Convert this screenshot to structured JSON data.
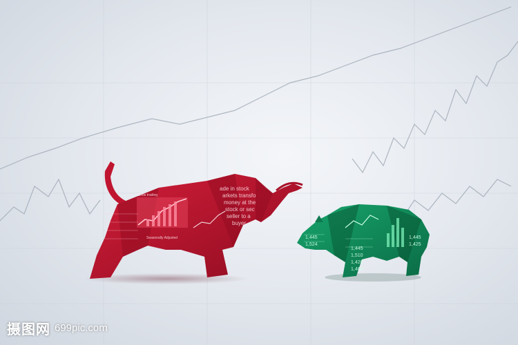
{
  "scene": {
    "subjects": [
      "bull",
      "bear"
    ],
    "bull_color": "#b3102a",
    "bear_color": "#0e8a5a",
    "bg_line_color": "#9aa4b0"
  },
  "bull_texts": [
    "ade in stock",
    "arkets transfo",
    "money at the",
    "stock or sec",
    "seller to a",
    "buyer",
    "Ends trading",
    "Seasonally Adjusted"
  ],
  "bear_texts": [
    "1,445",
    "1,524",
    "1,445",
    "1,510",
    "1,420",
    "1,460",
    "1,445",
    "1,425"
  ],
  "watermark": {
    "cn": "摄图网",
    "url": "699pic.com"
  }
}
